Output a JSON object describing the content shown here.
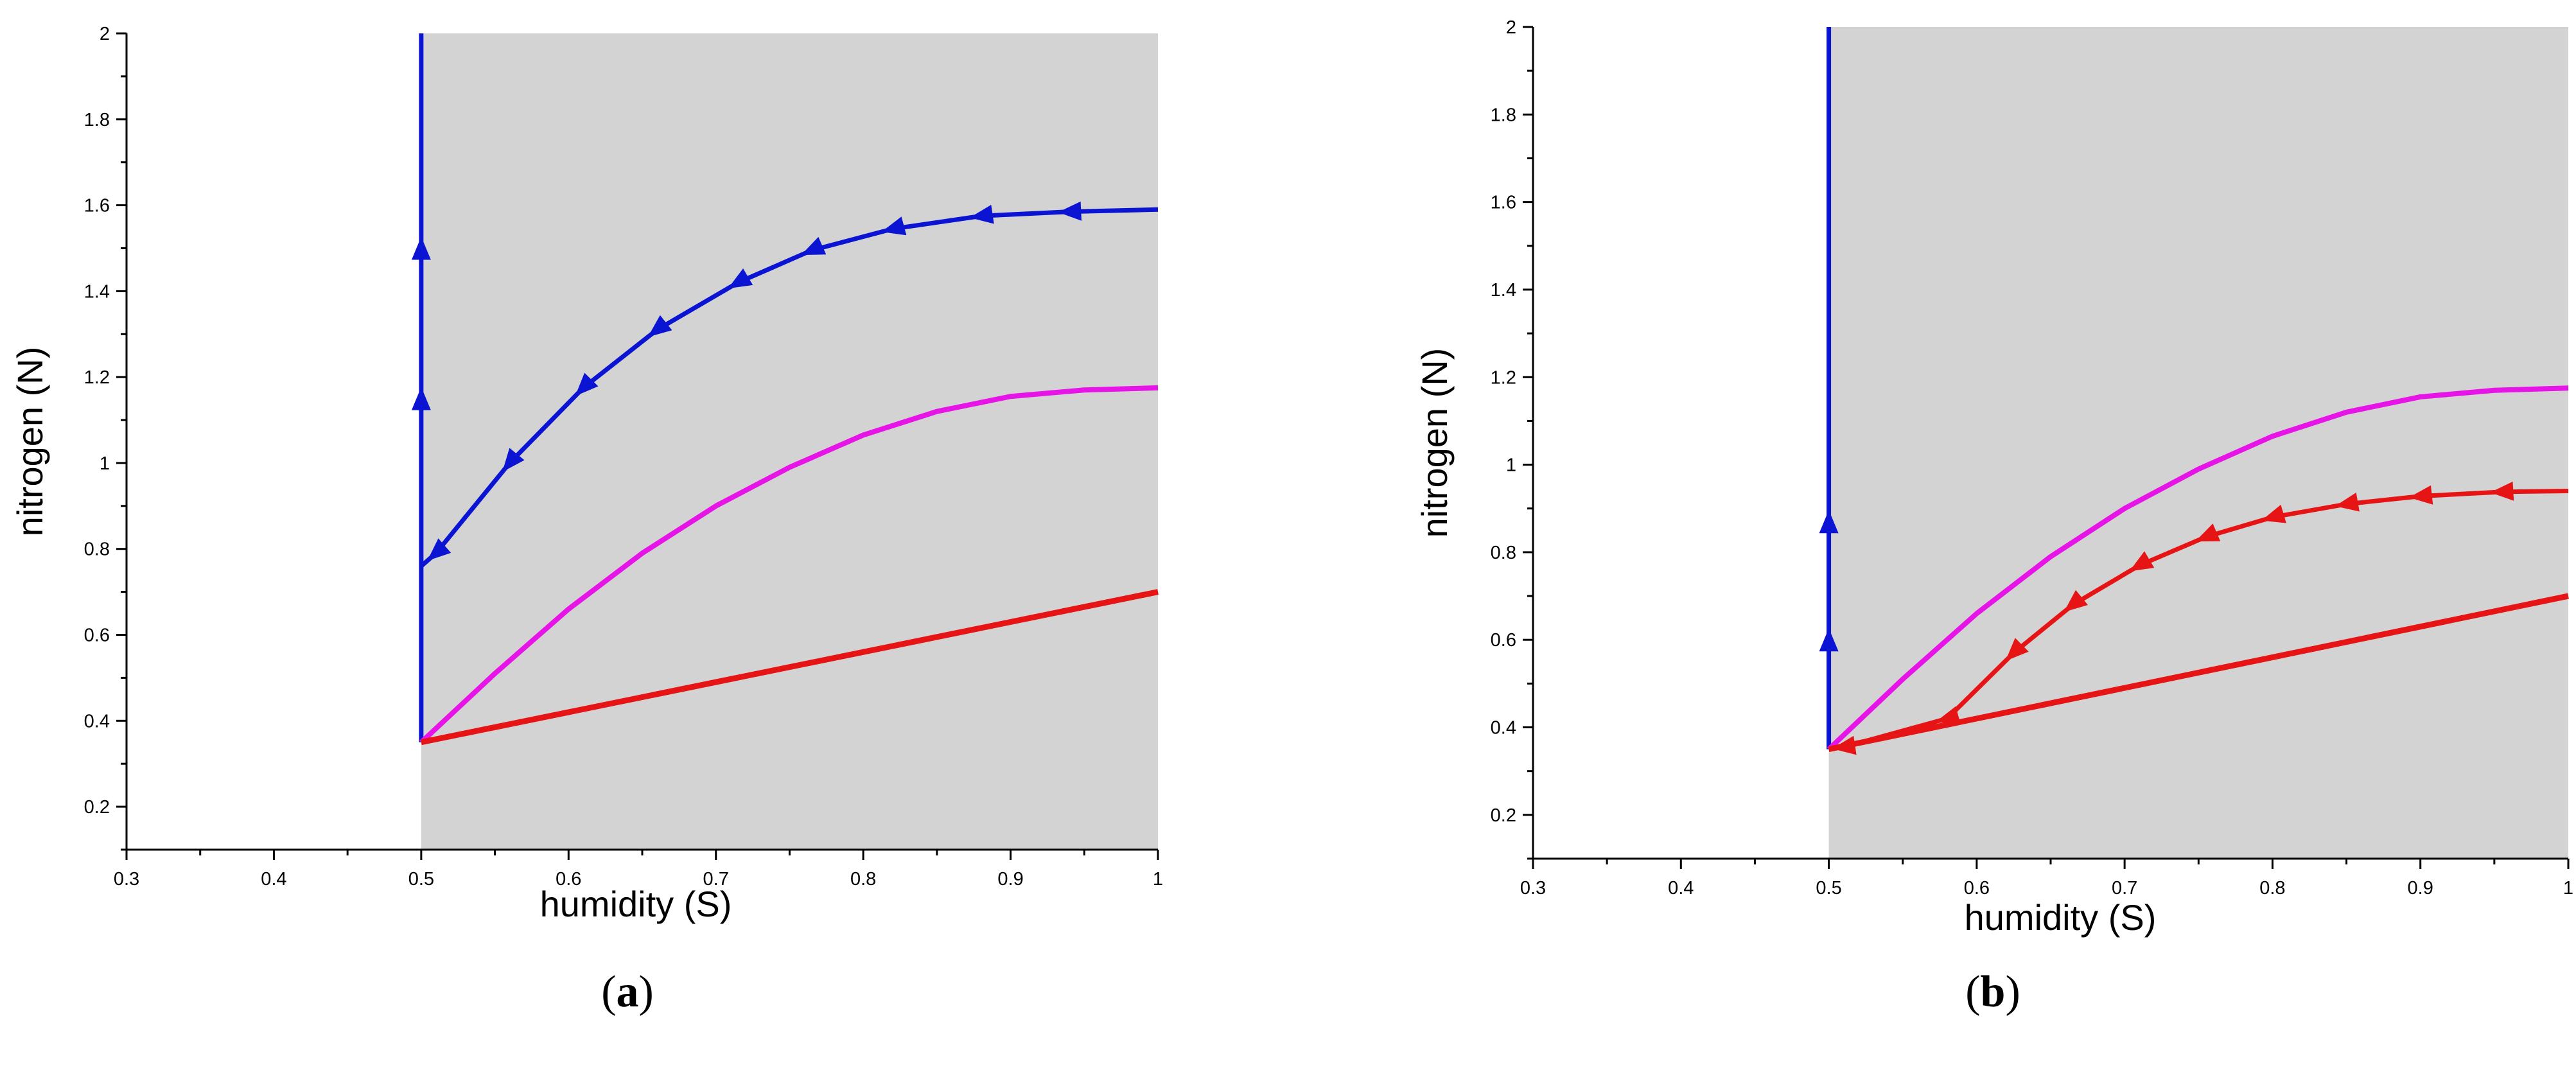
{
  "colors": {
    "region": "#d3d3d3",
    "blue": "#0a14d2",
    "magenta": "#e614e6",
    "red": "#e61414"
  },
  "panels": [
    {
      "caption": {
        "open": "(",
        "letter": "a",
        "close": ")"
      }
    },
    {
      "caption": {
        "open": "(",
        "letter": "b",
        "close": ")"
      }
    }
  ],
  "chart_data": [
    {
      "type": "line",
      "title": "",
      "xlabel": "humidity (S)",
      "ylabel": "nitrogen (N)",
      "xlim": [
        0.3,
        1
      ],
      "ylim": [
        0.1,
        2
      ],
      "xticks": [
        "0.3",
        "0.4",
        "0.5",
        "0.6",
        "0.7",
        "0.8",
        "0.9",
        "1"
      ],
      "yticks": [
        "0.2",
        "0.4",
        "0.6",
        "0.8",
        "1",
        "1.2",
        "1.4",
        "1.6",
        "1.8",
        "2"
      ],
      "grid": false,
      "shaded_region": {
        "color": "gray",
        "x": [
          0.5,
          1
        ],
        "y_upper": 2
      },
      "series": [
        {
          "color": "blue",
          "style": "vertical line",
          "x": [
            0.5,
            0.5
          ],
          "y": [
            0.35,
            2
          ],
          "arrows_at_y": [
            1.15,
            1.5
          ],
          "arrow_direction": "up"
        },
        {
          "color": "blue",
          "style": "trajectory",
          "x": [
            0.5,
            0.51,
            0.56,
            0.61,
            0.66,
            0.715,
            0.765,
            0.82,
            0.88,
            0.94,
            1.0
          ],
          "y": [
            0.76,
            0.79,
            1.0,
            1.175,
            1.31,
            1.42,
            1.495,
            1.545,
            1.575,
            1.585,
            1.59
          ],
          "arrows_at_index": [
            1,
            2,
            3,
            4,
            5,
            6,
            7,
            8,
            9
          ],
          "arrow_direction": "left"
        },
        {
          "color": "magenta",
          "style": "curve",
          "x": [
            0.5,
            0.55,
            0.6,
            0.65,
            0.7,
            0.75,
            0.8,
            0.85,
            0.9,
            0.95,
            1.0
          ],
          "y": [
            0.35,
            0.51,
            0.66,
            0.79,
            0.9,
            0.99,
            1.065,
            1.12,
            1.155,
            1.17,
            1.175
          ]
        },
        {
          "color": "red",
          "style": "line",
          "x": [
            0.5,
            1.0
          ],
          "y": [
            0.35,
            0.7
          ]
        }
      ]
    },
    {
      "type": "line",
      "title": "",
      "xlabel": "humidity (S)",
      "ylabel": "nitrogen (N)",
      "xlim": [
        0.3,
        1
      ],
      "ylim": [
        0.1,
        2
      ],
      "xticks": [
        "0.3",
        "0.4",
        "0.5",
        "0.6",
        "0.7",
        "0.8",
        "0.9",
        "1"
      ],
      "yticks": [
        "0.2",
        "0.4",
        "0.6",
        "0.8",
        "1",
        "1.2",
        "1.4",
        "1.6",
        "1.8",
        "2"
      ],
      "grid": false,
      "shaded_region": {
        "color": "gray",
        "x": [
          0.5,
          1
        ],
        "y_upper": 2
      },
      "series": [
        {
          "color": "blue",
          "style": "vertical line",
          "x": [
            0.5,
            0.5
          ],
          "y": [
            0.35,
            2
          ],
          "arrows_at_y": [
            0.6,
            0.87
          ],
          "arrow_direction": "up"
        },
        {
          "color": "magenta",
          "style": "curve",
          "x": [
            0.5,
            0.55,
            0.6,
            0.65,
            0.7,
            0.75,
            0.8,
            0.85,
            0.9,
            0.95,
            1.0
          ],
          "y": [
            0.35,
            0.51,
            0.66,
            0.79,
            0.9,
            0.99,
            1.065,
            1.12,
            1.155,
            1.17,
            1.175
          ]
        },
        {
          "color": "red",
          "style": "line",
          "x": [
            0.5,
            1.0
          ],
          "y": [
            0.35,
            0.7
          ]
        },
        {
          "color": "red",
          "style": "trajectory",
          "x": [
            0.5,
            0.51,
            0.58,
            0.625,
            0.665,
            0.71,
            0.755,
            0.8,
            0.85,
            0.9,
            0.955,
            1.0
          ],
          "y": [
            0.35,
            0.355,
            0.42,
            0.57,
            0.68,
            0.77,
            0.835,
            0.88,
            0.91,
            0.928,
            0.938,
            0.94
          ],
          "arrows_at_index": [
            1,
            2,
            3,
            4,
            5,
            6,
            7,
            8,
            9,
            10
          ],
          "arrow_direction": "left"
        }
      ]
    }
  ]
}
